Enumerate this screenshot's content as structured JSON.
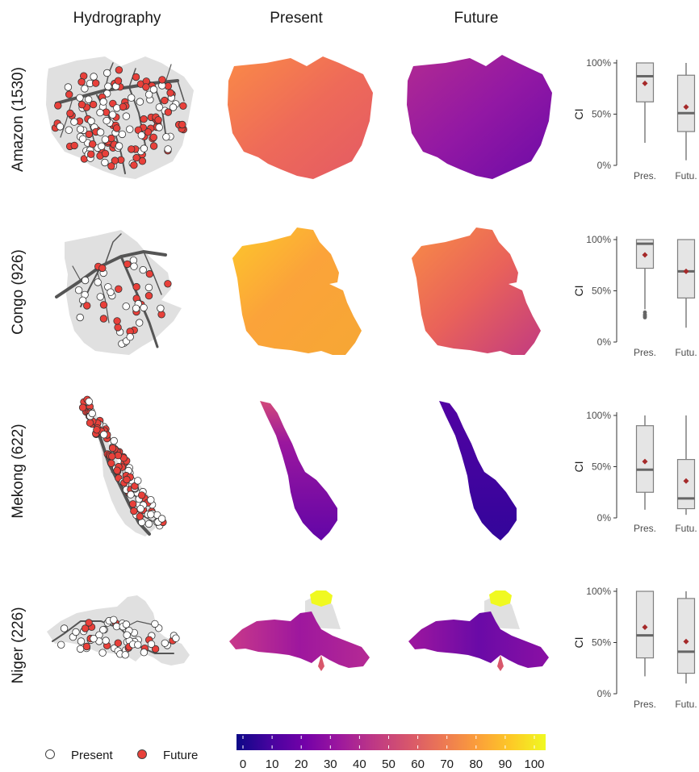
{
  "column_titles": [
    "Hydrography",
    "Present",
    "Future"
  ],
  "basins": [
    {
      "key": "amazon",
      "label": "Amazon (1530)",
      "present_color": "#f0704f",
      "future_color": "#9a1fa0"
    },
    {
      "key": "congo",
      "label": "Congo (926)",
      "present_color": "#f9a23a",
      "future_color": "#ee6a57"
    },
    {
      "key": "mekong",
      "label": "Mekong (622)",
      "present_color": "#7a16a8",
      "future_color": "#3c069b"
    },
    {
      "key": "niger",
      "label": "Niger (226)",
      "present_color": "#b2289c",
      "future_color": "#7912a8"
    }
  ],
  "legend": {
    "present_label": "Present",
    "future_label": "Future"
  },
  "colorbar": {
    "ticks": [
      "0",
      "10",
      "20",
      "30",
      "40",
      "50",
      "60",
      "70",
      "80",
      "90",
      "100"
    ],
    "colors": [
      "#0d0887",
      "#47039f",
      "#7301a8",
      "#9c179e",
      "#bd3786",
      "#d8576b",
      "#ed7953",
      "#fb9f3a",
      "#fdca26",
      "#f0f921"
    ]
  },
  "colors": {
    "present_marker_fill": "#ffffff",
    "future_marker_fill": "#e8403a",
    "box_fill": "#e5e5e5",
    "box_line": "#7f7f7f",
    "median_line": "#666666",
    "mean_marker": "#a52a2a",
    "land": "#e0e0e0",
    "river": "#555555"
  },
  "chart_data": [
    {
      "type": "box",
      "basin": "Amazon (1530)",
      "ylabel": "CI",
      "ylim": [
        0,
        100
      ],
      "yticks": [
        "0%",
        "50%",
        "100%"
      ],
      "categories": [
        "Pres.",
        "Futu."
      ],
      "boxes": [
        {
          "lower": 22,
          "q1": 62,
          "median": 87,
          "q3": 100,
          "upper": 100,
          "mean": 80,
          "outliers": []
        },
        {
          "lower": 5,
          "q1": 33,
          "median": 51,
          "q3": 88,
          "upper": 100,
          "mean": 57,
          "outliers": []
        }
      ]
    },
    {
      "type": "box",
      "basin": "Congo (926)",
      "ylabel": "CI",
      "ylim": [
        0,
        100
      ],
      "yticks": [
        "0%",
        "50%",
        "100%"
      ],
      "categories": [
        "Pres.",
        "Futu."
      ],
      "boxes": [
        {
          "lower": 32,
          "q1": 72,
          "median": 96,
          "q3": 100,
          "upper": 100,
          "mean": 85,
          "outliers": [
            29,
            27,
            26,
            25,
            24
          ]
        },
        {
          "lower": 14,
          "q1": 43,
          "median": 69,
          "q3": 100,
          "upper": 100,
          "mean": 69,
          "outliers": []
        }
      ]
    },
    {
      "type": "box",
      "basin": "Mekong (622)",
      "ylabel": "CI",
      "ylim": [
        0,
        100
      ],
      "yticks": [
        "0%",
        "50%",
        "100%"
      ],
      "categories": [
        "Pres.",
        "Futu."
      ],
      "boxes": [
        {
          "lower": 8,
          "q1": 25,
          "median": 47,
          "q3": 90,
          "upper": 100,
          "mean": 55,
          "outliers": []
        },
        {
          "lower": 3,
          "q1": 9,
          "median": 19,
          "q3": 57,
          "upper": 100,
          "mean": 36,
          "outliers": []
        }
      ]
    },
    {
      "type": "box",
      "basin": "Niger (226)",
      "ylabel": "CI",
      "ylim": [
        0,
        100
      ],
      "yticks": [
        "0%",
        "50%",
        "100%"
      ],
      "categories": [
        "Pres.",
        "Futu."
      ],
      "boxes": [
        {
          "lower": 17,
          "q1": 35,
          "median": 57,
          "q3": 100,
          "upper": 100,
          "mean": 65,
          "outliers": []
        },
        {
          "lower": 10,
          "q1": 20,
          "median": 41,
          "q3": 93,
          "upper": 100,
          "mean": 51,
          "outliers": []
        }
      ]
    }
  ]
}
